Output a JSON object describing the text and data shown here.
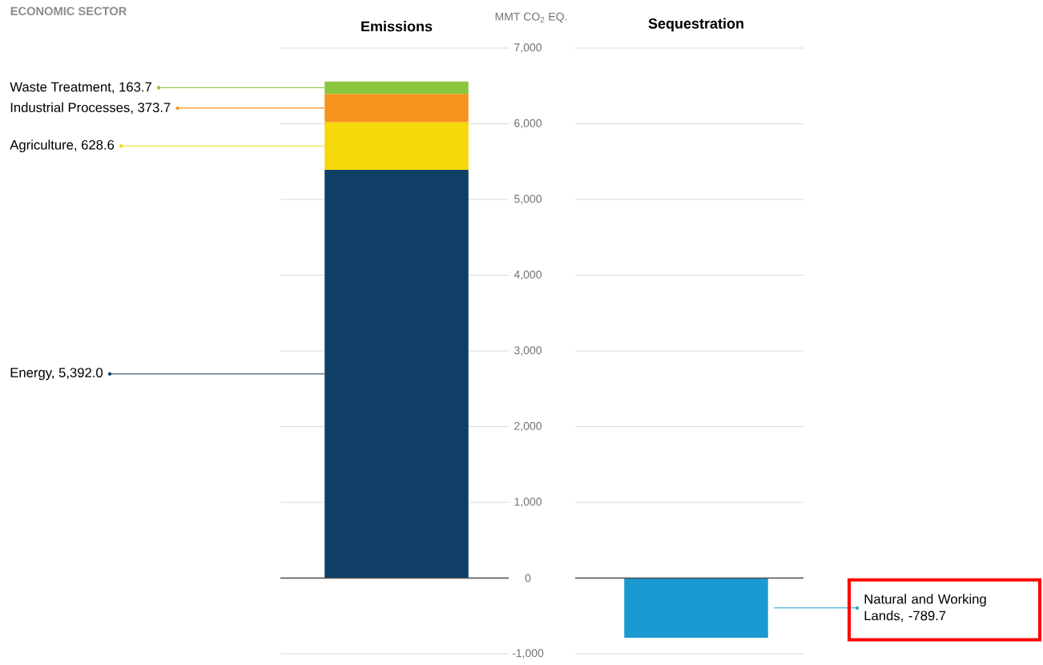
{
  "chart_data": {
    "type": "bar",
    "stacked": true,
    "categories": [
      "Emissions",
      "Sequestration"
    ],
    "ylabel": "MMT CO$_{2}$ EQ.",
    "annotations": [
      "ECONOMIC SECTOR",
      "Energy, 5,392.0",
      "Agriculture, 628.6",
      "Industrial Processes, 373.7",
      "Waste Treatment, 163.7",
      "Natural and Working Lands, -789.7"
    ],
    "series": [
      {
        "color": "#0f3f66",
        "values": [
          5392.0,
          null
        ]
      },
      {
        "color": "#f5d90a",
        "values": [
          628.6,
          null
        ]
      },
      {
        "color": "#f7941d",
        "values": [
          373.7,
          null
        ]
      },
      {
        "color": "#8dc63f",
        "values": [
          163.7,
          null
        ]
      },
      {
        "color": "#1b9ad1",
        "values": [
          null,
          -789.7
        ]
      }
    ],
    "ylim": [
      -1000,
      7000
    ],
    "yticks": [
      {
        "value": -1000,
        "label": "-1,000"
      },
      0,
      {
        "value": 1000,
        "label": "1,000"
      },
      {
        "value": 2000,
        "label": "2,000"
      },
      {
        "value": 3000,
        "label": "3,000"
      },
      {
        "value": 4000,
        "label": "4,000"
      },
      {
        "value": 5000,
        "label": "5,000"
      },
      {
        "value": 6000,
        "label": "6,000"
      },
      {
        "value": 7000,
        "label": "7,000"
      }
    ],
    "grid": "y"
  }
}
